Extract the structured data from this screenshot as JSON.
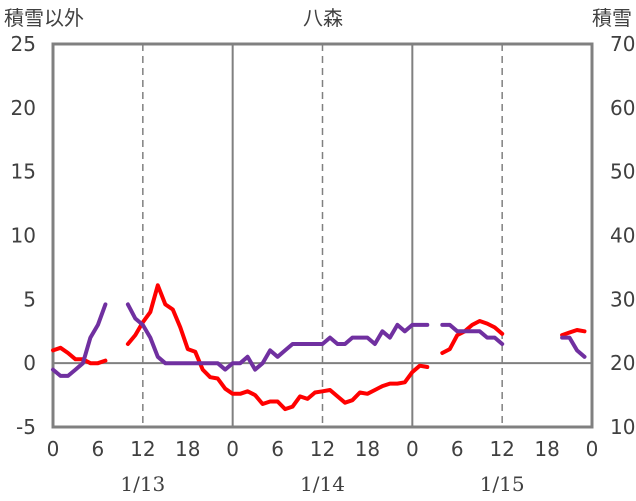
{
  "chart_data": {
    "type": "line",
    "title": "八森",
    "left_axis_label": "積雪以外",
    "right_axis_label": "積雪",
    "y_left": {
      "min": -5,
      "max": 25,
      "ticks": [
        25,
        20,
        15,
        10,
        5,
        0,
        -5
      ]
    },
    "y_right": {
      "min": 10,
      "max": 70,
      "ticks": [
        70,
        60,
        50,
        40,
        30,
        20,
        10
      ]
    },
    "x": {
      "min": 0,
      "max": 72,
      "tick_step": 6,
      "tick_labels": [
        "0",
        "6",
        "12",
        "18",
        "0",
        "6",
        "12",
        "18",
        "0",
        "6",
        "12",
        "18",
        "0"
      ]
    },
    "day_labels": [
      {
        "label": "1/13",
        "x": 12
      },
      {
        "label": "1/14",
        "x": 36
      },
      {
        "label": "1/15",
        "x": 60
      }
    ],
    "dashed_gridlines_x": [
      12,
      36,
      60
    ],
    "day_lines_x": [
      24,
      48
    ],
    "series": [
      {
        "color": "#ff0000",
        "axis": "left",
        "segments": [
          [
            [
              0,
              1.0
            ],
            [
              1,
              1.2
            ],
            [
              2,
              0.8
            ],
            [
              3,
              0.3
            ],
            [
              4,
              0.3
            ],
            [
              5,
              0.0
            ],
            [
              6,
              0.0
            ],
            [
              7,
              0.2
            ]
          ],
          [
            [
              10,
              1.5
            ],
            [
              11,
              2.2
            ],
            [
              12,
              3.2
            ],
            [
              13,
              4.0
            ],
            [
              14,
              6.1
            ],
            [
              15,
              4.6
            ],
            [
              16,
              4.2
            ],
            [
              17,
              2.8
            ],
            [
              18,
              1.1
            ],
            [
              19,
              0.9
            ],
            [
              20,
              -0.5
            ],
            [
              21,
              -1.1
            ],
            [
              22,
              -1.2
            ],
            [
              23,
              -2.0
            ],
            [
              24,
              -2.4
            ],
            [
              25,
              -2.4
            ],
            [
              26,
              -2.2
            ],
            [
              27,
              -2.5
            ],
            [
              28,
              -3.2
            ],
            [
              29,
              -3.0
            ],
            [
              30,
              -3.0
            ],
            [
              31,
              -3.6
            ],
            [
              32,
              -3.4
            ],
            [
              33,
              -2.6
            ],
            [
              34,
              -2.8
            ],
            [
              35,
              -2.3
            ],
            [
              36,
              -2.2
            ],
            [
              37,
              -2.1
            ],
            [
              38,
              -2.6
            ],
            [
              39,
              -3.1
            ],
            [
              40,
              -2.9
            ],
            [
              41,
              -2.3
            ],
            [
              42,
              -2.4
            ],
            [
              43,
              -2.1
            ],
            [
              44,
              -1.8
            ],
            [
              45,
              -1.6
            ],
            [
              46,
              -1.6
            ],
            [
              47,
              -1.5
            ],
            [
              48,
              -0.7
            ],
            [
              49,
              -0.2
            ],
            [
              50,
              -0.3
            ]
          ],
          [
            [
              52,
              0.8
            ],
            [
              53,
              1.1
            ],
            [
              54,
              2.2
            ],
            [
              55,
              2.5
            ],
            [
              56,
              3.0
            ],
            [
              57,
              3.3
            ],
            [
              58,
              3.1
            ],
            [
              59,
              2.8
            ],
            [
              60,
              2.3
            ]
          ],
          [
            [
              68,
              2.2
            ],
            [
              69,
              2.4
            ],
            [
              70,
              2.6
            ],
            [
              71,
              2.5
            ]
          ]
        ]
      },
      {
        "color": "#7030a0",
        "axis": "left",
        "segments": [
          [
            [
              0,
              -0.5
            ],
            [
              1,
              -1.0
            ],
            [
              2,
              -1.0
            ],
            [
              3,
              -0.5
            ],
            [
              4,
              0.0
            ],
            [
              5,
              2.0
            ],
            [
              6,
              3.0
            ],
            [
              7,
              4.6
            ]
          ],
          [
            [
              10,
              4.6
            ],
            [
              11,
              3.5
            ],
            [
              12,
              3.0
            ],
            [
              13,
              2.0
            ],
            [
              14,
              0.5
            ],
            [
              15,
              0.0
            ],
            [
              16,
              0.0
            ],
            [
              17,
              0.0
            ],
            [
              18,
              0.0
            ],
            [
              19,
              0.0
            ],
            [
              20,
              0.0
            ],
            [
              21,
              0.0
            ],
            [
              22,
              0.0
            ],
            [
              23,
              -0.5
            ],
            [
              24,
              0.0
            ],
            [
              25,
              0.0
            ],
            [
              26,
              0.5
            ],
            [
              27,
              -0.5
            ],
            [
              28,
              0.0
            ],
            [
              29,
              1.0
            ],
            [
              30,
              0.5
            ],
            [
              31,
              1.0
            ],
            [
              32,
              1.5
            ],
            [
              33,
              1.5
            ],
            [
              34,
              1.5
            ],
            [
              35,
              1.5
            ],
            [
              36,
              1.5
            ],
            [
              37,
              2.0
            ],
            [
              38,
              1.5
            ],
            [
              39,
              1.5
            ],
            [
              40,
              2.0
            ],
            [
              41,
              2.0
            ],
            [
              42,
              2.0
            ],
            [
              43,
              1.5
            ],
            [
              44,
              2.5
            ],
            [
              45,
              2.0
            ],
            [
              46,
              3.0
            ],
            [
              47,
              2.5
            ],
            [
              48,
              3.0
            ],
            [
              49,
              3.0
            ],
            [
              50,
              3.0
            ]
          ],
          [
            [
              52,
              3.0
            ],
            [
              53,
              3.0
            ],
            [
              54,
              2.5
            ],
            [
              55,
              2.5
            ],
            [
              56,
              2.5
            ],
            [
              57,
              2.5
            ],
            [
              58,
              2.0
            ],
            [
              59,
              2.0
            ],
            [
              60,
              1.5
            ]
          ],
          [
            [
              68,
              2.0
            ],
            [
              69,
              2.0
            ],
            [
              70,
              1.0
            ],
            [
              71,
              0.5
            ]
          ]
        ]
      }
    ]
  }
}
